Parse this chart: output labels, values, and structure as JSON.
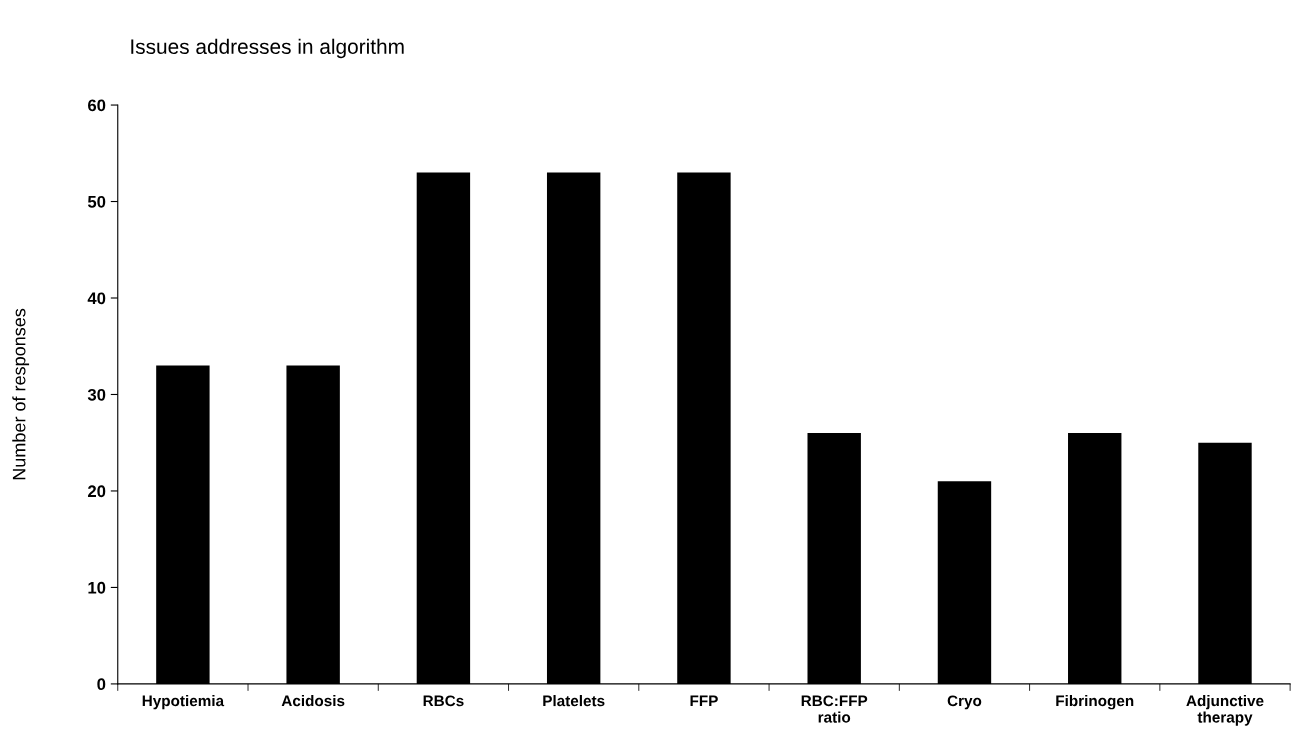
{
  "chart_data": {
    "type": "bar",
    "title": "Issues addresses in algorithm",
    "ylabel": "Number of responses",
    "categories": [
      "Hypotiemia",
      "Acidosis",
      "RBCs",
      "Platelets",
      "FFP",
      "RBC:FFP\nratio",
      "Cryo",
      "Fibrinogen",
      "Adjunctive\ntherapy"
    ],
    "values": [
      33,
      33,
      53,
      53,
      53,
      26,
      21,
      26,
      25
    ],
    "color": "#000000",
    "ylim": [
      0,
      60
    ],
    "yticks": [
      0,
      10,
      20,
      30,
      40,
      50,
      60
    ],
    "grid": false,
    "legend": false
  }
}
